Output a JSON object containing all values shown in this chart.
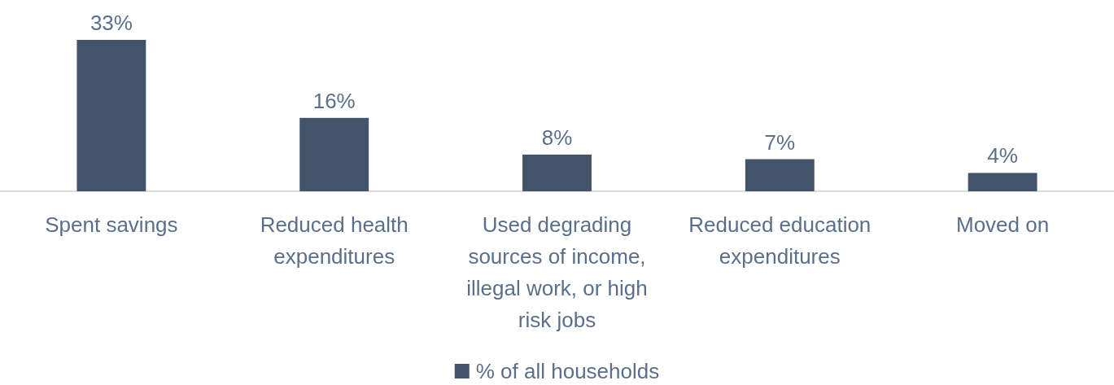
{
  "chart_data": {
    "type": "bar",
    "categories": [
      "Spent savings",
      "Reduced health expenditures",
      "Used degrading sources of income, illegal work, or high risk jobs",
      "Reduced education expenditures",
      "Moved on"
    ],
    "series": [
      {
        "name": "% of all households",
        "color": "#435369",
        "values": [
          33,
          16,
          8,
          7,
          4
        ],
        "value_labels": [
          "33%",
          "16%",
          "8%",
          "7%",
          "4%"
        ]
      }
    ],
    "legend": "bottom"
  }
}
